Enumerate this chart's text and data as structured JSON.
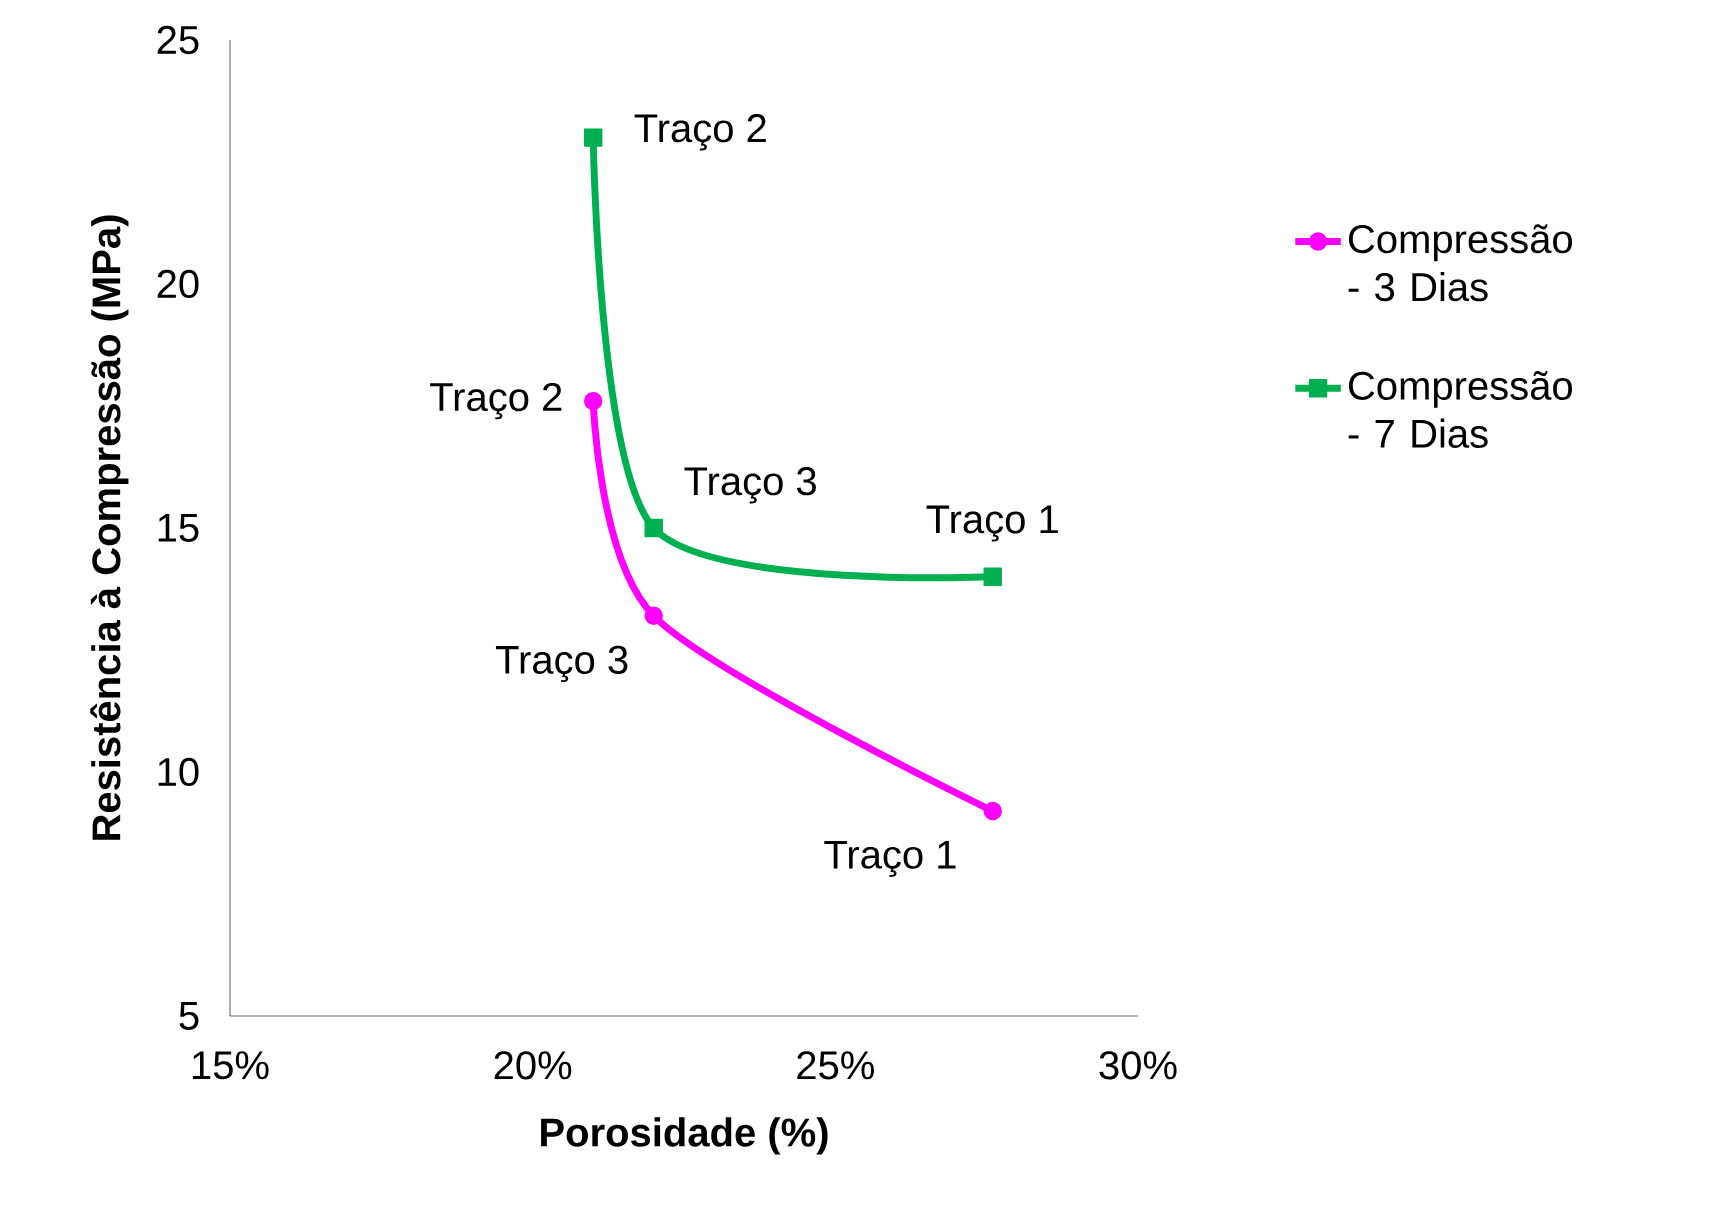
{
  "chart_data": {
    "type": "line",
    "xlabel": "Porosidade (%)",
    "ylabel": "Resistência à Compressão (MPa)",
    "xlim": [
      15,
      30
    ],
    "xticks": [
      {
        "value": 15,
        "label": "15%"
      },
      {
        "value": 20,
        "label": "20%"
      },
      {
        "value": 25,
        "label": "25%"
      },
      {
        "value": 30,
        "label": "30%"
      }
    ],
    "ylim": [
      5,
      25
    ],
    "yticks": [
      5,
      10,
      15,
      20,
      25
    ],
    "grid": false,
    "legend": "right",
    "line_style": "solid",
    "series": [
      {
        "name": "Compressão - 3 Dias",
        "color": "#ff00ff",
        "marker": "circle",
        "x": [
          21.0,
          22.0,
          27.6
        ],
        "values": [
          17.6,
          13.2,
          9.2
        ]
      },
      {
        "name": "Compressão - 7 Dias",
        "color": "#00b050",
        "marker": "square",
        "x": [
          21.0,
          22.0,
          27.6
        ],
        "values": [
          23.0,
          15.0,
          14.0
        ]
      }
    ],
    "annotations": [
      {
        "text": "Traço 2",
        "x": 21.0,
        "y": 17.6
      },
      {
        "text": "Traço 3",
        "x": 22.0,
        "y": 13.2
      },
      {
        "text": "Traço 1",
        "x": 27.6,
        "y": 9.2
      },
      {
        "text": "Traço 2",
        "x": 21.0,
        "y": 23.0
      },
      {
        "text": "Traço 3",
        "x": 22.0,
        "y": 15.0
      },
      {
        "text": "Traço 1",
        "x": 27.6,
        "y": 14.0
      }
    ]
  }
}
